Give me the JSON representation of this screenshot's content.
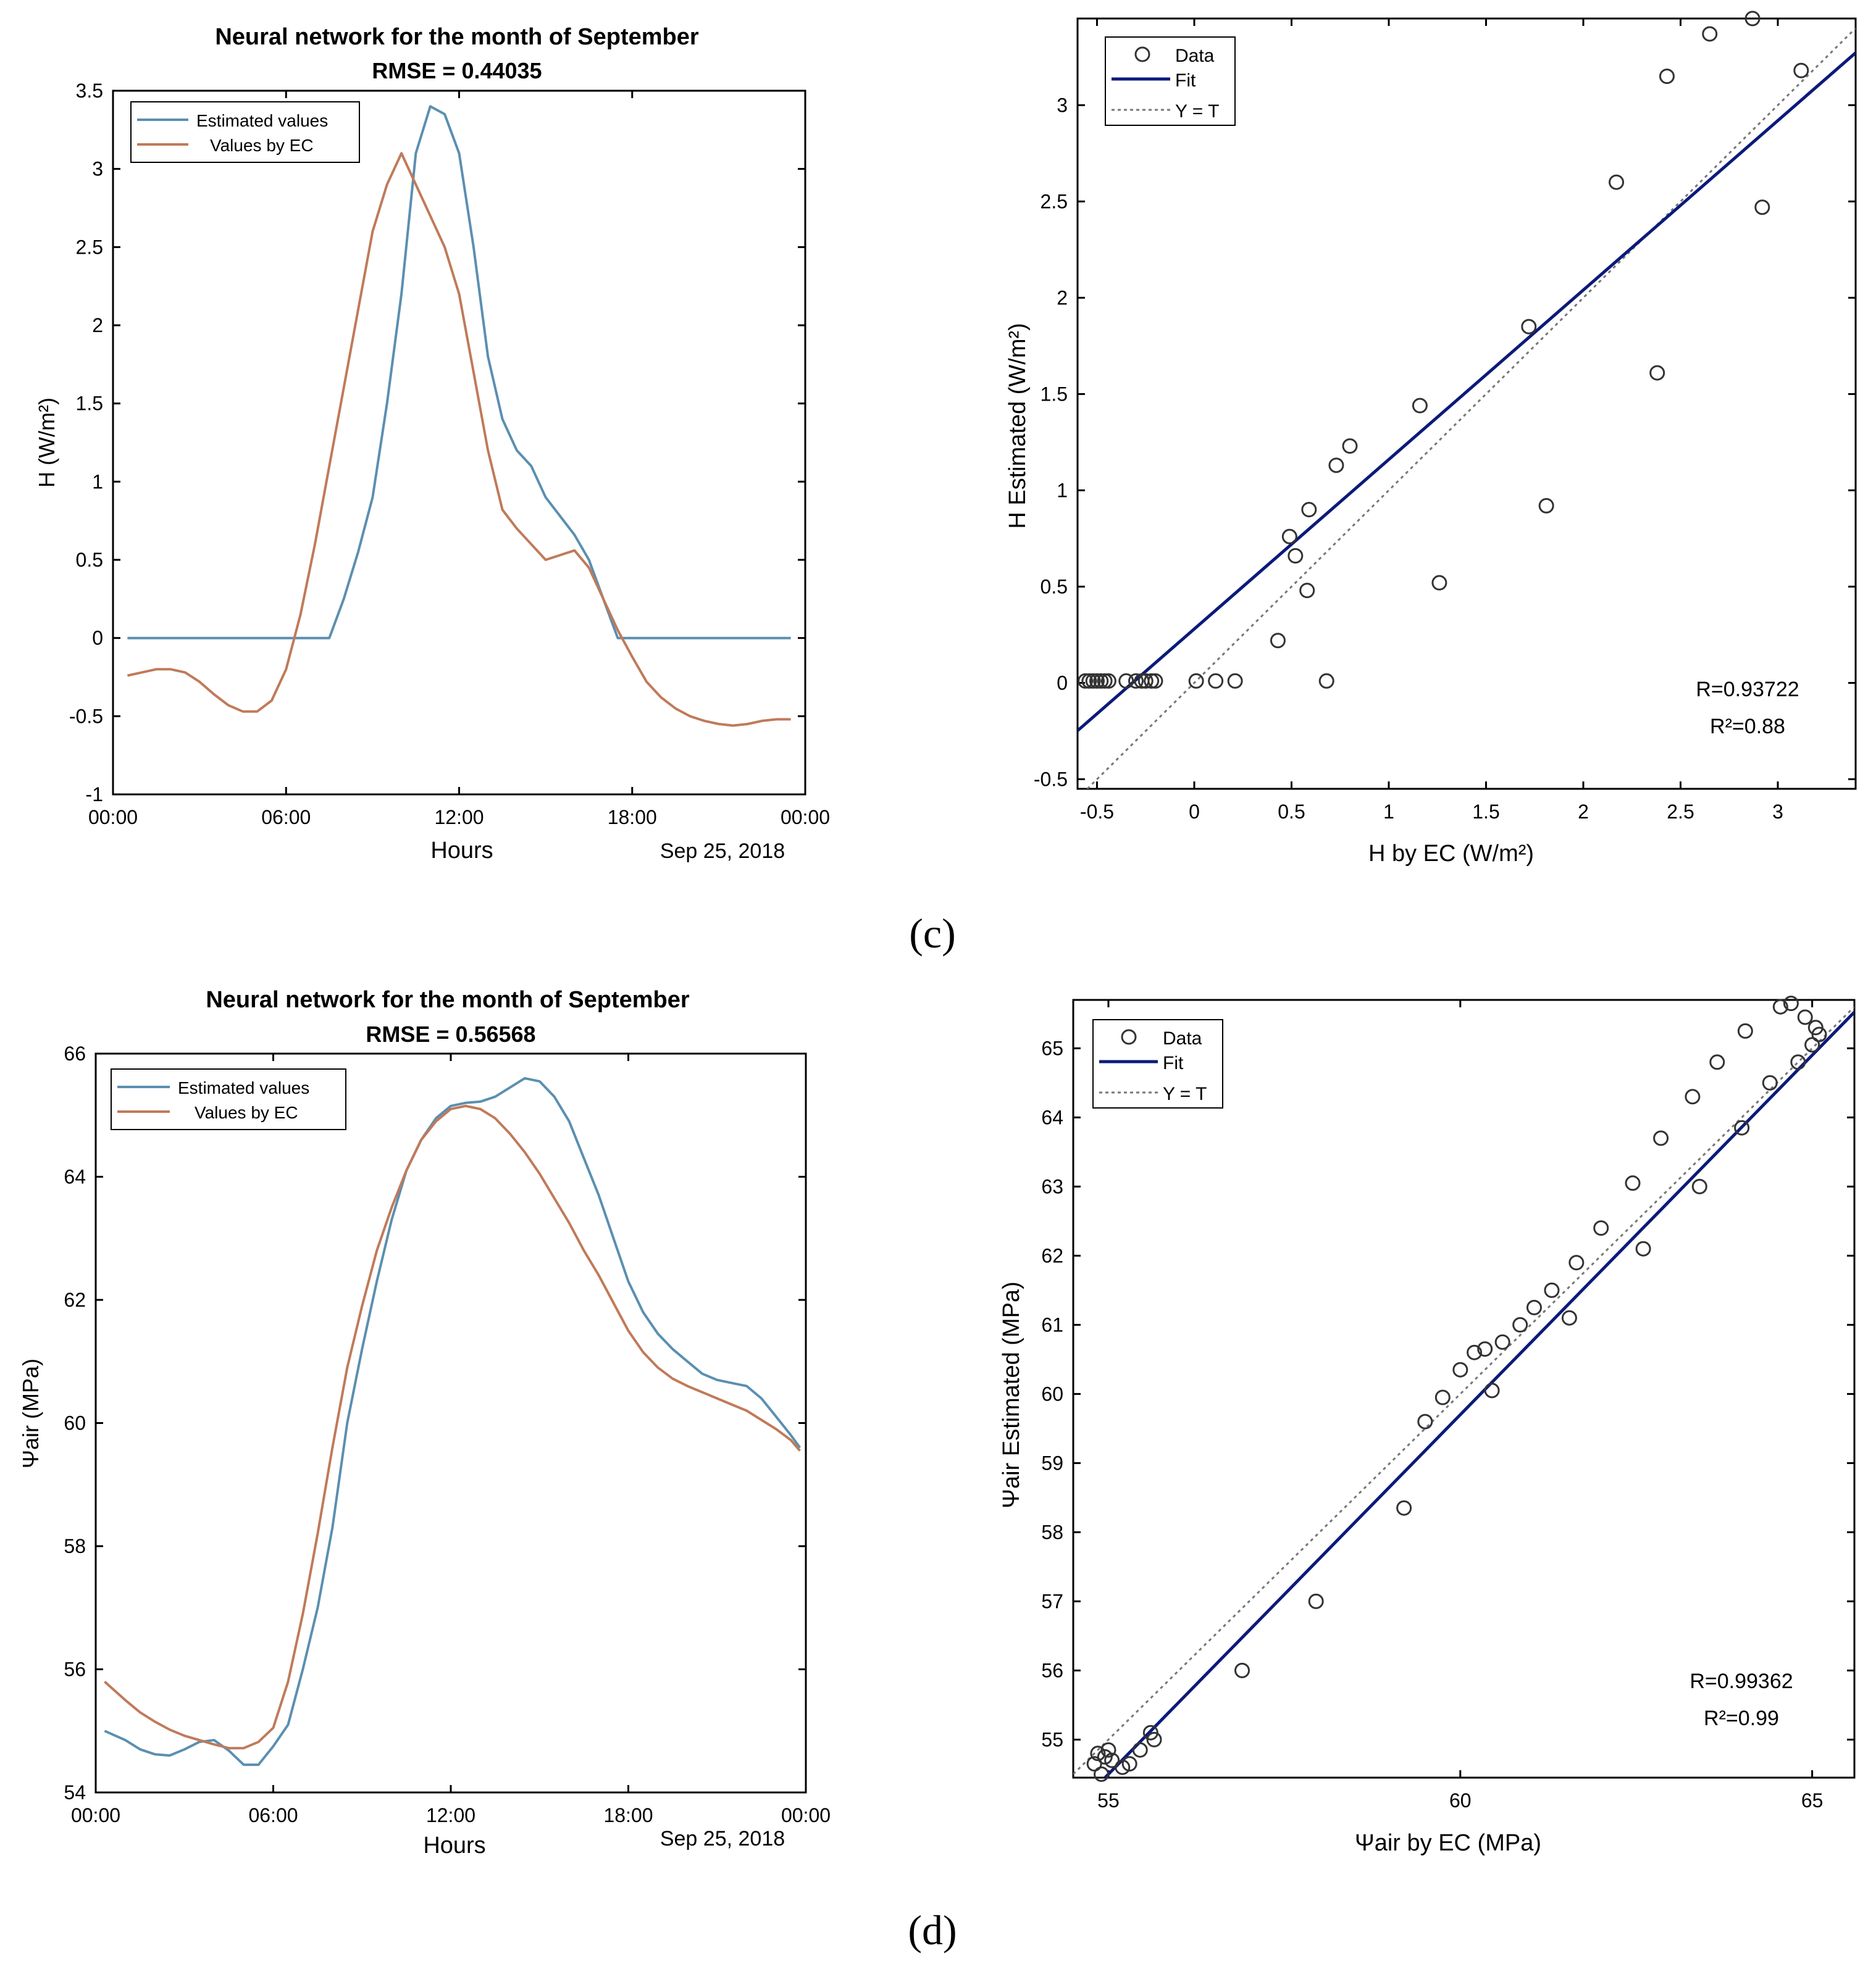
{
  "colors": {
    "estimated": "#5b8fb0",
    "ec": "#c07a5a",
    "fit": "#0b1a7a",
    "ref": "#777777",
    "marker": "#333333"
  },
  "panel_labels": [
    "(c)",
    "(d)"
  ],
  "chart_data": [
    {
      "id": "c-timeseries",
      "type": "line",
      "title": "Neural network for the month of September",
      "subtitle": "RMSE = 0.44035",
      "xlabel": "Hours",
      "ylabel": "H (W/m²)",
      "date_label": "Sep 25, 2018",
      "xlim": [
        0,
        24
      ],
      "ylim": [
        -1,
        3.5
      ],
      "xticks": [
        0,
        6,
        12,
        18,
        24
      ],
      "xtick_labels": [
        "00:00",
        "06:00",
        "12:00",
        "18:00",
        "00:00"
      ],
      "yticks": [
        -1,
        -0.5,
        0,
        0.5,
        1,
        1.5,
        2,
        2.5,
        3,
        3.5
      ],
      "ytick_labels": [
        "-1",
        "-0.5",
        "0",
        "0.5",
        "1",
        "1.5",
        "2",
        "2.5",
        "3",
        "3.5"
      ],
      "legend": [
        "Estimated values",
        "Values by EC"
      ],
      "series": [
        {
          "name": "Estimated values",
          "color_key": "estimated",
          "x": [
            0.5,
            7.5,
            8,
            8.5,
            9,
            9.5,
            10,
            10.5,
            11,
            11.5,
            12,
            12.5,
            13,
            13.5,
            14,
            14.5,
            15,
            15.5,
            16,
            16.5,
            17,
            17.5,
            23.5
          ],
          "y": [
            0,
            0,
            0.25,
            0.55,
            0.9,
            1.5,
            2.2,
            3.1,
            3.4,
            3.35,
            3.1,
            2.5,
            1.8,
            1.4,
            1.2,
            1.1,
            0.9,
            0.78,
            0.66,
            0.5,
            0.25,
            0,
            0
          ]
        },
        {
          "name": "Values by EC",
          "color_key": "ec",
          "x": [
            0.5,
            1,
            1.5,
            2,
            2.5,
            3,
            3.5,
            4,
            4.5,
            5,
            5.5,
            6,
            6.5,
            7,
            7.5,
            8,
            8.5,
            9,
            9.5,
            10,
            10.5,
            11,
            11.5,
            12,
            12.5,
            13,
            13.5,
            14,
            14.5,
            15,
            15.5,
            16,
            16.5,
            17,
            17.5,
            18,
            18.5,
            19,
            19.5,
            20,
            20.5,
            21,
            21.5,
            22,
            22.5,
            23,
            23.5
          ],
          "y": [
            -0.24,
            -0.22,
            -0.2,
            -0.2,
            -0.22,
            -0.28,
            -0.36,
            -0.43,
            -0.47,
            -0.47,
            -0.4,
            -0.2,
            0.15,
            0.6,
            1.1,
            1.6,
            2.1,
            2.6,
            2.9,
            3.1,
            2.9,
            2.7,
            2.5,
            2.2,
            1.7,
            1.2,
            0.82,
            0.7,
            0.6,
            0.5,
            0.53,
            0.56,
            0.45,
            0.25,
            0.05,
            -0.12,
            -0.28,
            -0.38,
            -0.45,
            -0.5,
            -0.53,
            -0.55,
            -0.56,
            -0.55,
            -0.53,
            -0.52,
            -0.52
          ]
        }
      ]
    },
    {
      "id": "c-scatter",
      "type": "scatter",
      "xlabel": "H by EC  (W/m²)",
      "ylabel": "H Estimated  (W/m²)",
      "xlim": [
        -0.6,
        3.4
      ],
      "ylim": [
        -0.55,
        3.45
      ],
      "xticks": [
        -0.5,
        0,
        0.5,
        1,
        1.5,
        2,
        2.5,
        3
      ],
      "xtick_labels": [
        "-0.5",
        "0",
        "0.5",
        "1",
        "1.5",
        "2",
        "2.5",
        "3"
      ],
      "yticks": [
        -0.5,
        0,
        0.5,
        1,
        1.5,
        2,
        2.5,
        3
      ],
      "ytick_labels": [
        "-0.5",
        "0",
        "0.5",
        "1",
        "1.5",
        "2",
        "2.5",
        "3"
      ],
      "legend": [
        "Data",
        "Fit",
        "Y = T"
      ],
      "annotation": [
        "R=0.93722",
        "R²=0.88"
      ],
      "fit": {
        "slope": 0.88,
        "intercept": 0.28
      },
      "points": {
        "x": [
          -0.56,
          -0.54,
          -0.52,
          -0.5,
          -0.48,
          -0.46,
          -0.44,
          -0.35,
          -0.3,
          -0.27,
          -0.25,
          -0.22,
          -0.2,
          0.01,
          0.11,
          0.21,
          0.43,
          0.49,
          0.52,
          0.58,
          0.59,
          0.68,
          0.73,
          0.8,
          1.16,
          1.26,
          1.72,
          1.81,
          2.17,
          2.38,
          2.43,
          2.65,
          2.87,
          2.92,
          3.12
        ],
        "y": [
          0.01,
          0.01,
          0.01,
          0.01,
          0.01,
          0.01,
          0.01,
          0.01,
          0.01,
          0.01,
          0.01,
          0.01,
          0.01,
          0.01,
          0.01,
          0.01,
          0.22,
          0.76,
          0.66,
          0.48,
          0.9,
          0.01,
          1.13,
          1.23,
          1.44,
          0.52,
          1.85,
          0.92,
          2.6,
          1.61,
          3.15,
          3.37,
          3.45,
          2.47,
          3.18
        ]
      }
    },
    {
      "id": "d-timeseries",
      "type": "line",
      "title": "Neural network for the month of September",
      "subtitle": "RMSE = 0.56568",
      "xlabel": "Hours",
      "ylabel": "Ψair (MPa)",
      "date_label": "Sep 25, 2018",
      "xlim": [
        0,
        24
      ],
      "ylim": [
        54,
        66
      ],
      "xticks": [
        0,
        6,
        12,
        18,
        24
      ],
      "xtick_labels": [
        "00:00",
        "06:00",
        "12:00",
        "18:00",
        "00:00"
      ],
      "yticks": [
        54,
        56,
        58,
        60,
        62,
        64,
        66
      ],
      "ytick_labels": [
        "54",
        "56",
        "58",
        "60",
        "62",
        "64",
        "66"
      ],
      "legend": [
        "Estimated values",
        "Values by EC"
      ],
      "series": [
        {
          "name": "Estimated values",
          "color_key": "estimated",
          "x": [
            0.3,
            1,
            1.5,
            2,
            2.5,
            3,
            3.5,
            4,
            4.5,
            5,
            5.5,
            6,
            6.5,
            7,
            7.5,
            8,
            8.5,
            9,
            9.5,
            10,
            10.5,
            11,
            11.5,
            12,
            12.5,
            13,
            13.5,
            14,
            14.5,
            15,
            15.5,
            16,
            16.5,
            17,
            17.5,
            18,
            18.5,
            19,
            19.5,
            20,
            20.5,
            21,
            21.5,
            22,
            22.5,
            23,
            23.5,
            23.8
          ],
          "y": [
            55,
            54.85,
            54.7,
            54.62,
            54.6,
            54.7,
            54.82,
            54.85,
            54.68,
            54.45,
            54.45,
            54.75,
            55.1,
            56,
            57,
            58.3,
            60,
            61.2,
            62.3,
            63.3,
            64.1,
            64.6,
            64.95,
            65.15,
            65.2,
            65.22,
            65.3,
            65.45,
            65.6,
            65.55,
            65.3,
            64.9,
            64.3,
            63.7,
            63,
            62.3,
            61.8,
            61.45,
            61.2,
            61,
            60.8,
            60.7,
            60.65,
            60.6,
            60.4,
            60.1,
            59.8,
            59.6
          ]
        },
        {
          "name": "Values by EC",
          "color_key": "ec",
          "x": [
            0.3,
            1,
            1.5,
            2,
            2.5,
            3,
            3.5,
            4,
            4.5,
            5,
            5.5,
            6,
            6.5,
            7,
            7.5,
            8,
            8.5,
            9,
            9.5,
            10,
            10.5,
            11,
            11.5,
            12,
            12.5,
            13,
            13.5,
            14,
            14.5,
            15,
            15.5,
            16,
            16.5,
            17,
            17.5,
            18,
            18.5,
            19,
            19.5,
            20,
            20.5,
            21,
            21.5,
            22,
            22.5,
            23,
            23.5,
            23.8
          ],
          "y": [
            55.8,
            55.5,
            55.3,
            55.15,
            55.02,
            54.92,
            54.85,
            54.78,
            54.72,
            54.72,
            54.82,
            55.05,
            55.8,
            56.9,
            58.2,
            59.6,
            60.9,
            61.9,
            62.8,
            63.5,
            64.1,
            64.6,
            64.9,
            65.1,
            65.15,
            65.1,
            64.95,
            64.7,
            64.4,
            64.05,
            63.65,
            63.25,
            62.8,
            62.4,
            61.95,
            61.5,
            61.15,
            60.9,
            60.72,
            60.6,
            60.5,
            60.4,
            60.3,
            60.2,
            60.05,
            59.9,
            59.72,
            59.55
          ]
        }
      ]
    },
    {
      "id": "d-scatter",
      "type": "scatter",
      "xlabel": "Ψair by EC (MPa)",
      "ylabel": "Ψair Estimated  (MPa)",
      "xlim": [
        54.5,
        65.6
      ],
      "ylim": [
        54.45,
        65.7
      ],
      "xticks": [
        55,
        60,
        65
      ],
      "xtick_labels": [
        "55",
        "60",
        "65"
      ],
      "yticks": [
        55,
        56,
        57,
        58,
        59,
        60,
        61,
        62,
        63,
        64,
        65
      ],
      "ytick_labels": [
        "55",
        "56",
        "57",
        "58",
        "59",
        "60",
        "61",
        "62",
        "63",
        "64",
        "65"
      ],
      "legend": [
        "Data",
        "Fit",
        "Y = T"
      ],
      "annotation": [
        "R=0.99362",
        "R²=0.99"
      ],
      "fit": {
        "slope": 1.04,
        "intercept": -2.7
      },
      "points": {
        "x": [
          54.8,
          54.85,
          54.9,
          54.95,
          55.0,
          55.05,
          55.2,
          55.3,
          55.45,
          55.6,
          55.65,
          56.9,
          57.95,
          59.2,
          59.5,
          59.75,
          60.0,
          60.2,
          60.35,
          60.45,
          60.6,
          60.85,
          61.05,
          61.3,
          61.55,
          61.65,
          62.0,
          62.45,
          62.6,
          62.85,
          63.3,
          63.4,
          63.65,
          64.0,
          64.05,
          64.4,
          64.55,
          64.7,
          64.8,
          64.9,
          65.0,
          65.05,
          65.1
        ],
        "y": [
          54.65,
          54.8,
          54.5,
          54.75,
          54.85,
          54.7,
          54.6,
          54.65,
          54.85,
          55.1,
          55.0,
          56.0,
          57.0,
          58.35,
          59.6,
          59.95,
          60.35,
          60.6,
          60.65,
          60.05,
          60.75,
          61.0,
          61.25,
          61.5,
          61.1,
          61.9,
          62.4,
          63.05,
          62.1,
          63.7,
          64.3,
          63.0,
          64.8,
          63.85,
          65.25,
          64.5,
          65.6,
          65.65,
          64.8,
          65.45,
          65.05,
          65.3,
          65.2
        ]
      }
    }
  ]
}
